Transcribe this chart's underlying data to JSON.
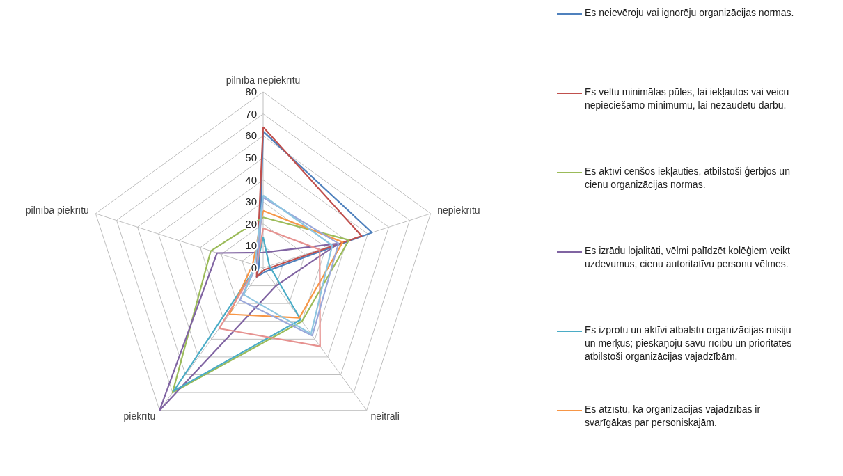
{
  "chart_data": {
    "type": "radar",
    "categories": [
      "pilnībā nepiekrītu",
      "nepiekrītu",
      "neitrāli",
      "piekrītu",
      "pilnībā piekrītu"
    ],
    "ylim": [
      0,
      80
    ],
    "yticks": [
      0,
      10,
      20,
      30,
      40,
      50,
      60,
      70,
      80
    ],
    "grid": true,
    "legend": "right",
    "marker": "none",
    "line_style": "solid",
    "series": [
      {
        "name": "Es neievēroju vai ignorēju organizācijas normas.",
        "color": "#4f81bd",
        "values": [
          62,
          52,
          2,
          5,
          2
        ]
      },
      {
        "name": "Es veltu minimālas pūles, lai iekļautos vai veicu nepieciešamo minimumu, lai nezaudētu darbu.",
        "color": "#c0504d",
        "values": [
          64,
          47,
          1,
          5,
          3
        ]
      },
      {
        "name": "Es aktīvi cenšos iekļauties, atbilstoši ģērbjos un cienu organizācijas normas.",
        "color": "#9bbb59",
        "values": [
          23,
          41,
          30,
          70,
          25
        ]
      },
      {
        "name": "Es izrādu lojalitāti, vēlmi palīdzēt kolēģiem veikt uzdevumus, cienu autoritatīvu personu vēlmes.",
        "color": "#8064a2",
        "values": [
          7,
          36,
          10,
          80,
          22
        ]
      },
      {
        "name": "Es izprotu un aktīvi atbalstu organizācijas misiju un mērķus; pieskaņoju savu rīcību un prioritātes atbilstoši organizācijas vajadzībām.",
        "color": "#4bacc6",
        "values": [
          14,
          3,
          29,
          69,
          3
        ]
      },
      {
        "name": "Es atzīstu, ka organizācijas vajadzības ir svarīgākas par personiskajām.",
        "color": "#f79646",
        "values": [
          26,
          38,
          28,
          26,
          5
        ]
      },
      {
        "color": "#e6918f",
        "values": [
          18,
          27,
          44,
          34,
          3
        ]
      },
      {
        "color": "#9aa8da",
        "values": [
          32,
          36,
          38,
          18,
          3
        ]
      },
      {
        "color": "#8dc5e0",
        "values": [
          33,
          33,
          37,
          15,
          4
        ]
      }
    ]
  }
}
